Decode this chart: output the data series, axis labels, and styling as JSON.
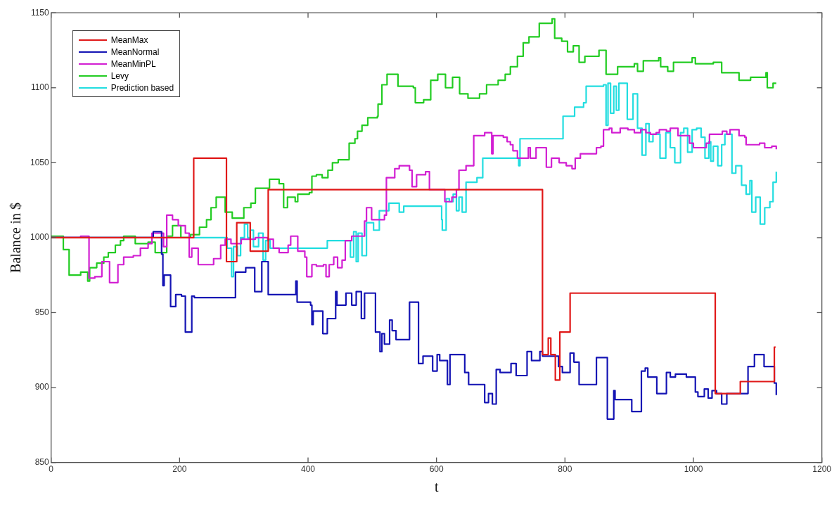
{
  "chart_data": {
    "type": "step",
    "xlabel": "t",
    "ylabel": "Balance in $",
    "xlim": [
      0,
      1200
    ],
    "xticks": [
      0,
      200,
      400,
      600,
      800,
      1000,
      1200
    ],
    "ylim": [
      850,
      1150
    ],
    "yticks": [
      850,
      900,
      950,
      1000,
      1050,
      1100,
      1150
    ],
    "grid": false,
    "legend": "top left",
    "line_style": "solid",
    "marker": "none",
    "series": [
      {
        "name": "MeanMax",
        "color": "#e01818",
        "x": [
          0,
          222,
          273,
          289,
          310,
          338,
          765,
          774,
          778,
          785,
          792,
          808,
          1034,
          1073,
          1126,
          1128
        ],
        "values": [
          1000,
          1053,
          984,
          1010,
          991,
          1032,
          922,
          933,
          922,
          905,
          937,
          963,
          896,
          904,
          927,
          927
        ]
      },
      {
        "name": "MeanNormal",
        "color": "#1414b4",
        "x": [
          0,
          159,
          172,
          174,
          176,
          186,
          194,
          203,
          209,
          219,
          223,
          277,
          287,
          303,
          314,
          317,
          322,
          328,
          338,
          378,
          381,
          383,
          404,
          406,
          408,
          419,
          423,
          430,
          436,
          443,
          445,
          457,
          459,
          468,
          475,
          483,
          488,
          502,
          505,
          512,
          515,
          519,
          527,
          531,
          537,
          556,
          558,
          566,
          572,
          579,
          587,
          594,
          601,
          605,
          615,
          617,
          621,
          640,
          644,
          650,
          672,
          675,
          681,
          687,
          693,
          699,
          712,
          716,
          724,
          738,
          741,
          746,
          748,
          761,
          765,
          785,
          790,
          796,
          808,
          814,
          822,
          847,
          849,
          861,
          866,
          876,
          878,
          902,
          904,
          917,
          919,
          925,
          929,
          937,
          943,
          952,
          958,
          964,
          972,
          989,
          1003,
          1007,
          1017,
          1023,
          1029,
          1036,
          1044,
          1052,
          1081,
          1085,
          1095,
          1107,
          1110,
          1122,
          1126,
          1129
        ],
        "values": [
          1000,
          1004,
          989,
          968,
          975,
          954,
          962,
          961,
          937,
          961,
          960,
          960,
          977,
          980,
          980,
          964,
          964,
          984,
          962,
          962,
          971,
          957,
          955,
          942,
          951,
          951,
          936,
          946,
          946,
          964,
          955,
          955,
          963,
          955,
          964,
          946,
          963,
          963,
          937,
          924,
          936,
          929,
          945,
          938,
          932,
          932,
          957,
          957,
          916,
          921,
          921,
          911,
          922,
          918,
          918,
          902,
          922,
          922,
          910,
          902,
          902,
          890,
          896,
          889,
          912,
          910,
          910,
          916,
          908,
          908,
          924,
          924,
          918,
          924,
          921,
          921,
          914,
          910,
          923,
          917,
          902,
          902,
          920,
          920,
          879,
          898,
          892,
          892,
          884,
          884,
          911,
          913,
          907,
          907,
          896,
          896,
          910,
          907,
          909,
          907,
          897,
          894,
          899,
          893,
          898,
          896,
          889,
          896,
          896,
          914,
          922,
          922,
          914,
          914,
          903,
          895
        ]
      },
      {
        "name": "MeanMinPL",
        "color": "#d21ed2",
        "x": [
          0,
          46,
          57,
          59,
          68,
          79,
          88,
          91,
          100,
          104,
          113,
          128,
          139,
          148,
          151,
          157,
          173,
          175,
          180,
          189,
          198,
          209,
          215,
          219,
          229,
          253,
          264,
          271,
          280,
          296,
          318,
          337,
          346,
          355,
          369,
          373,
          380,
          384,
          395,
          398,
          406,
          413,
          424,
          428,
          433,
          440,
          446,
          453,
          458,
          468,
          488,
          491,
          499,
          519,
          522,
          535,
          542,
          549,
          558,
          562,
          567,
          569,
          583,
          589,
          607,
          613,
          624,
          631,
          635,
          646,
          653,
          658,
          675,
          683,
          686,
          688,
          704,
          710,
          715,
          719,
          726,
          730,
          743,
          746,
          755,
          770,
          771,
          779,
          791,
          802,
          811,
          816,
          824,
          835,
          849,
          856,
          860,
          869,
          873,
          884,
          886,
          898,
          908,
          918,
          926,
          933,
          942,
          947,
          958,
          964,
          969,
          976,
          994,
          1000,
          1014,
          1020,
          1025,
          1045,
          1052,
          1057,
          1067,
          1071,
          1080,
          1082,
          1103,
          1111,
          1122,
          1129
        ],
        "values": [
          1000,
          1001,
          1001,
          973,
          974,
          984,
          984,
          970,
          970,
          982,
          987,
          988,
          993,
          993,
          996,
          1003,
          1003,
          994,
          1015,
          1012,
          1008,
          1003,
          987,
          993,
          982,
          986,
          995,
          999,
          996,
          999,
          1000,
          999,
          993,
          990,
          995,
          1001,
          1001,
          991,
          987,
          974,
          982,
          981,
          982,
          974,
          982,
          987,
          980,
          985,
          998,
          1001,
          1011,
          1020,
          1012,
          1015,
          1040,
          1046,
          1048,
          1048,
          1045,
          1034,
          1034,
          1042,
          1044,
          1032,
          1032,
          1024,
          1027,
          1032,
          1045,
          1048,
          1048,
          1068,
          1070,
          1070,
          1056,
          1068,
          1067,
          1064,
          1062,
          1058,
          1053,
          1053,
          1060,
          1053,
          1060,
          1060,
          1047,
          1053,
          1050,
          1048,
          1046,
          1053,
          1056,
          1056,
          1060,
          1061,
          1072,
          1073,
          1070,
          1070,
          1073,
          1072,
          1070,
          1072,
          1070,
          1069,
          1070,
          1072,
          1071,
          1073,
          1073,
          1068,
          1063,
          1060,
          1060,
          1063,
          1069,
          1071,
          1069,
          1072,
          1072,
          1068,
          1067,
          1062,
          1063,
          1060,
          1061,
          1059
        ]
      },
      {
        "name": "Levy",
        "color": "#22cc22",
        "x": [
          0,
          15,
          19,
          26,
          28,
          46,
          53,
          57,
          60,
          71,
          82,
          89,
          100,
          108,
          113,
          129,
          131,
          147,
          151,
          160,
          162,
          179,
          180,
          189,
          198,
          202,
          217,
          231,
          242,
          249,
          257,
          269,
          271,
          275,
          282,
          289,
          300,
          311,
          318,
          333,
          340,
          348,
          355,
          360,
          362,
          366,
          368,
          377,
          380,
          384,
          402,
          406,
          413,
          420,
          422,
          428,
          431,
          438,
          447,
          462,
          464,
          473,
          477,
          484,
          493,
          508,
          509,
          515,
          523,
          536,
          540,
          551,
          564,
          567,
          580,
          591,
          602,
          613,
          614,
          623,
          625,
          634,
          636,
          649,
          667,
          678,
          696,
          707,
          715,
          726,
          735,
          744,
          760,
          780,
          784,
          795,
          804,
          813,
          822,
          831,
          853,
          860,
          864,
          882,
          908,
          913,
          922,
          946,
          949,
          960,
          969,
          998,
          1003,
          1031,
          1044,
          1058,
          1071,
          1089,
          1113,
          1115,
          1122,
          1124,
          1129
        ],
        "values": [
          1001,
          1001,
          992,
          992,
          975,
          977,
          977,
          971,
          980,
          983,
          987,
          990,
          995,
          998,
          1001,
          1001,
          996,
          996,
          997,
          997,
          990,
          990,
          1001,
          1008,
          1008,
          1000,
          1002,
          1007,
          1012,
          1020,
          1027,
          1027,
          1017,
          1017,
          1013,
          1013,
          1020,
          1023,
          1033,
          1033,
          1039,
          1039,
          1036,
          1036,
          1020,
          1020,
          1027,
          1027,
          1024,
          1029,
          1030,
          1041,
          1042,
          1042,
          1040,
          1040,
          1045,
          1050,
          1052,
          1052,
          1063,
          1066,
          1071,
          1075,
          1080,
          1081,
          1089,
          1102,
          1109,
          1109,
          1101,
          1101,
          1100,
          1090,
          1092,
          1105,
          1109,
          1109,
          1100,
          1100,
          1107,
          1107,
          1096,
          1093,
          1096,
          1102,
          1105,
          1109,
          1114,
          1121,
          1130,
          1134,
          1143,
          1146,
          1133,
          1131,
          1124,
          1128,
          1117,
          1121,
          1125,
          1125,
          1109,
          1114,
          1116,
          1111,
          1118,
          1120,
          1114,
          1111,
          1117,
          1120,
          1116,
          1117,
          1110,
          1110,
          1105,
          1107,
          1110,
          1100,
          1100,
          1103,
          1103
        ]
      },
      {
        "name": "Prediction based",
        "color": "#22dde0",
        "x": [
          0,
          270,
          274,
          281,
          284,
          290,
          295,
          301,
          306,
          310,
          315,
          323,
          330,
          334,
          341,
          419,
          430,
          457,
          466,
          471,
          475,
          478,
          484,
          491,
          502,
          511,
          522,
          526,
          535,
          542,
          549,
          602,
          608,
          609,
          615,
          620,
          626,
          631,
          635,
          640,
          646,
          663,
          672,
          726,
          728,
          730,
          795,
          797,
          815,
          820,
          829,
          833,
          860,
          864,
          867,
          871,
          876,
          880,
          884,
          897,
          906,
          913,
          920,
          926,
          931,
          937,
          948,
          957,
          964,
          971,
          980,
          985,
          991,
          998,
          1005,
          1012,
          1018,
          1024,
          1027,
          1031,
          1038,
          1044,
          1049,
          1060,
          1066,
          1075,
          1082,
          1088,
          1091,
          1097,
          1104,
          1111,
          1119,
          1124,
          1129
        ],
        "values": [
          1000,
          1000,
          993,
          974,
          994,
          988,
          1000,
          1009,
          1000,
          1005,
          994,
          1003,
          985,
          998,
          993,
          993,
          998,
          998,
          987,
          1004,
          984,
          1003,
          988,
          1010,
          1005,
          1018,
          1018,
          1023,
          1023,
          1017,
          1021,
          1021,
          1012,
          1005,
          1026,
          1024,
          1029,
          1018,
          1027,
          1017,
          1037,
          1040,
          1053,
          1053,
          1048,
          1066,
          1066,
          1081,
          1087,
          1087,
          1090,
          1101,
          1102,
          1075,
          1103,
          1083,
          1101,
          1085,
          1103,
          1079,
          1096,
          1073,
          1055,
          1076,
          1064,
          1069,
          1053,
          1070,
          1060,
          1050,
          1070,
          1073,
          1057,
          1072,
          1073,
          1067,
          1053,
          1064,
          1051,
          1061,
          1048,
          1062,
          1069,
          1043,
          1048,
          1035,
          1029,
          1038,
          1017,
          1027,
          1009,
          1020,
          1024,
          1037,
          1044
        ]
      }
    ]
  }
}
